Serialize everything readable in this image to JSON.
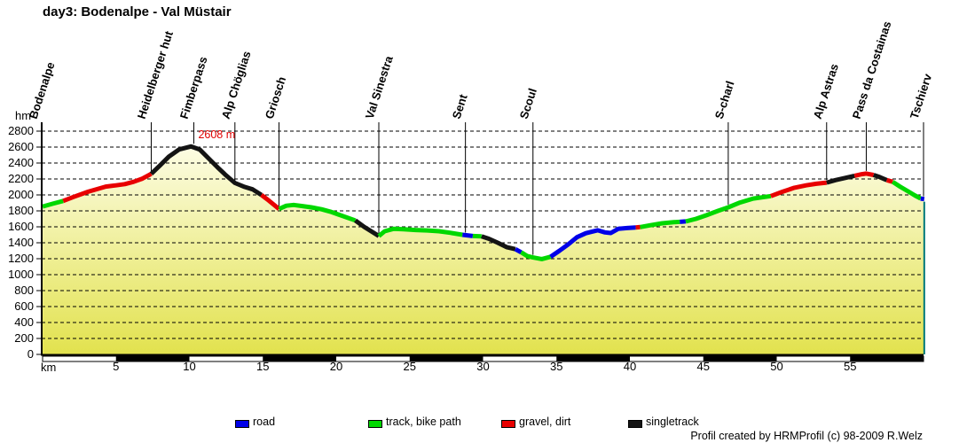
{
  "title": "day3: Bodenalpe - Val Müstair",
  "footer": "Profil created by HRMProfil (c) 98-2009 R.Welz",
  "peak_annotation": "2608 m",
  "y_axis": {
    "label": "hm",
    "ticks": [
      0,
      200,
      400,
      600,
      800,
      1000,
      1200,
      1400,
      1600,
      1800,
      2000,
      2200,
      2400,
      2600,
      2800
    ]
  },
  "x_axis": {
    "label": "km",
    "ticks": [
      5,
      10,
      15,
      20,
      25,
      30,
      35,
      40,
      45,
      50,
      55
    ]
  },
  "legend": [
    {
      "label": "road",
      "surface": "road"
    },
    {
      "label": "track, bike path",
      "surface": "track"
    },
    {
      "label": "gravel, dirt",
      "surface": "gravel"
    },
    {
      "label": "singletrack",
      "surface": "singletrack"
    }
  ],
  "colors": {
    "road": "#0000e8",
    "track": "#00d800",
    "gravel": "#e80000",
    "singletrack": "#141414",
    "annotation": "#e00000",
    "fill_top": "#fffff4",
    "fill_bottom": "#e2e24e",
    "end_line": "#007878",
    "grid": "#000000"
  },
  "chart_data": {
    "type": "line",
    "title": "day3: Bodenalpe - Val Müstair",
    "xlabel": "km",
    "ylabel": "hm",
    "xlim": [
      0,
      60.1
    ],
    "ylim": [
      0,
      2800
    ],
    "x_tick_step": 5,
    "y_tick_step": 200,
    "grid": "horizontal-dashed",
    "legend_position": "bottom",
    "peak": {
      "label": "2608 m",
      "km": 10.3,
      "m": 2608
    },
    "waypoints": [
      {
        "name": "Bodenalpe",
        "km": 0,
        "m": 1855
      },
      {
        "name": "Heidelberger hut",
        "km": 7.4,
        "m": 2265
      },
      {
        "name": "Fimberpass",
        "km": 10.3,
        "m": 2608
      },
      {
        "name": "Alp Chöglias",
        "km": 13.1,
        "m": 2150
      },
      {
        "name": "Griosch",
        "km": 16.1,
        "m": 1825
      },
      {
        "name": "Val Sinestra",
        "km": 22.9,
        "m": 1485
      },
      {
        "name": "Sent",
        "km": 28.8,
        "m": 1495
      },
      {
        "name": "Scoul",
        "km": 33.4,
        "m": 1215
      },
      {
        "name": "S-charl",
        "km": 46.7,
        "m": 1845
      },
      {
        "name": "Alp Astras",
        "km": 53.4,
        "m": 2155
      },
      {
        "name": "Pass da Costainas",
        "km": 56.1,
        "m": 2268
      },
      {
        "name": "Tschierv",
        "km": 60,
        "m": 1948
      }
    ],
    "scale_bar_black_segments": [
      [
        5,
        10
      ],
      [
        15,
        20
      ],
      [
        25,
        30
      ],
      [
        35,
        40
      ],
      [
        45,
        50
      ],
      [
        55,
        60
      ]
    ],
    "segments": [
      {
        "surface": "track",
        "points": [
          [
            0,
            1855
          ],
          [
            0.7,
            1890
          ],
          [
            1.4,
            1925
          ]
        ]
      },
      {
        "surface": "gravel",
        "points": [
          [
            1.4,
            1925
          ],
          [
            2.1,
            1975
          ],
          [
            3.1,
            2040
          ],
          [
            4.3,
            2105
          ],
          [
            5,
            2120
          ],
          [
            5.6,
            2135
          ],
          [
            6.2,
            2165
          ],
          [
            6.8,
            2205
          ],
          [
            7.4,
            2265
          ]
        ]
      },
      {
        "surface": "singletrack",
        "points": [
          [
            7.4,
            2265
          ],
          [
            8,
            2370
          ],
          [
            8.6,
            2480
          ],
          [
            9.3,
            2570
          ],
          [
            10.1,
            2608
          ],
          [
            10.7,
            2570
          ],
          [
            11.3,
            2460
          ],
          [
            11.9,
            2350
          ],
          [
            12.5,
            2245
          ],
          [
            13.1,
            2150
          ],
          [
            13.7,
            2105
          ],
          [
            14.3,
            2070
          ],
          [
            14.9,
            2000
          ]
        ]
      },
      {
        "surface": "gravel",
        "points": [
          [
            14.9,
            2000
          ],
          [
            15.4,
            1930
          ],
          [
            16.1,
            1825
          ]
        ]
      },
      {
        "surface": "track",
        "points": [
          [
            16.1,
            1825
          ],
          [
            16.6,
            1865
          ],
          [
            17.1,
            1875
          ],
          [
            17.7,
            1860
          ],
          [
            18.3,
            1845
          ],
          [
            19,
            1820
          ],
          [
            19.6,
            1790
          ],
          [
            20.3,
            1745
          ],
          [
            21.3,
            1680
          ]
        ]
      },
      {
        "surface": "singletrack",
        "points": [
          [
            21.3,
            1680
          ],
          [
            21.9,
            1600
          ],
          [
            22.5,
            1530
          ],
          [
            22.9,
            1485
          ]
        ]
      },
      {
        "surface": "track",
        "points": [
          [
            22.9,
            1485
          ],
          [
            23.3,
            1545
          ],
          [
            23.9,
            1575
          ],
          [
            24.6,
            1570
          ],
          [
            25.4,
            1560
          ],
          [
            26.2,
            1555
          ],
          [
            27,
            1545
          ],
          [
            27.8,
            1525
          ],
          [
            28.6,
            1500
          ]
        ]
      },
      {
        "surface": "road",
        "points": [
          [
            28.6,
            1500
          ],
          [
            29.3,
            1485
          ]
        ]
      },
      {
        "surface": "track",
        "points": [
          [
            29.3,
            1485
          ],
          [
            29.9,
            1480
          ]
        ]
      },
      {
        "surface": "singletrack",
        "points": [
          [
            29.9,
            1480
          ],
          [
            30.4,
            1450
          ],
          [
            31,
            1400
          ],
          [
            31.6,
            1345
          ],
          [
            32.2,
            1320
          ]
        ]
      },
      {
        "surface": "road",
        "points": [
          [
            32.2,
            1320
          ],
          [
            32.6,
            1280
          ]
        ]
      },
      {
        "surface": "track",
        "points": [
          [
            32.6,
            1280
          ],
          [
            33,
            1235
          ],
          [
            33.4,
            1215
          ],
          [
            34,
            1195
          ],
          [
            34.6,
            1225
          ]
        ]
      },
      {
        "surface": "road",
        "points": [
          [
            34.6,
            1225
          ],
          [
            35.2,
            1300
          ],
          [
            35.8,
            1380
          ],
          [
            36.4,
            1470
          ],
          [
            37,
            1520
          ],
          [
            37.8,
            1557
          ],
          [
            38.3,
            1530
          ],
          [
            38.7,
            1522
          ],
          [
            39.2,
            1575
          ],
          [
            39.8,
            1585
          ],
          [
            40.4,
            1592
          ]
        ]
      },
      {
        "surface": "gravel",
        "points": [
          [
            40.4,
            1592
          ],
          [
            40.7,
            1597
          ]
        ]
      },
      {
        "surface": "track",
        "points": [
          [
            40.7,
            1597
          ],
          [
            41.4,
            1620
          ],
          [
            42.2,
            1645
          ],
          [
            43,
            1658
          ],
          [
            43.4,
            1662
          ]
        ]
      },
      {
        "surface": "road",
        "points": [
          [
            43.4,
            1662
          ],
          [
            43.8,
            1668
          ]
        ]
      },
      {
        "surface": "track",
        "points": [
          [
            43.8,
            1668
          ],
          [
            44.5,
            1700
          ],
          [
            45.2,
            1745
          ],
          [
            46,
            1800
          ],
          [
            46.7,
            1845
          ],
          [
            47.5,
            1905
          ],
          [
            48.4,
            1955
          ],
          [
            49.6,
            1985
          ]
        ]
      },
      {
        "surface": "gravel",
        "points": [
          [
            49.6,
            1985
          ],
          [
            50.4,
            2040
          ],
          [
            51.2,
            2090
          ],
          [
            52,
            2120
          ],
          [
            52.7,
            2140
          ],
          [
            53.4,
            2155
          ]
        ]
      },
      {
        "surface": "singletrack",
        "points": [
          [
            53.4,
            2155
          ],
          [
            54,
            2185
          ],
          [
            54.7,
            2215
          ],
          [
            55.3,
            2240
          ]
        ]
      },
      {
        "surface": "gravel",
        "points": [
          [
            55.3,
            2240
          ],
          [
            55.8,
            2260
          ],
          [
            56.1,
            2268
          ],
          [
            56.6,
            2250
          ]
        ]
      },
      {
        "surface": "singletrack",
        "points": [
          [
            56.6,
            2250
          ],
          [
            57,
            2225
          ],
          [
            57.5,
            2185
          ]
        ]
      },
      {
        "surface": "gravel",
        "points": [
          [
            57.5,
            2185
          ],
          [
            57.9,
            2165
          ]
        ]
      },
      {
        "surface": "track",
        "points": [
          [
            57.9,
            2165
          ],
          [
            58.4,
            2105
          ],
          [
            58.9,
            2050
          ],
          [
            59.4,
            1995
          ],
          [
            59.8,
            1955
          ]
        ]
      },
      {
        "surface": "road",
        "points": [
          [
            59.8,
            1955
          ],
          [
            60.05,
            1948
          ]
        ]
      }
    ]
  }
}
